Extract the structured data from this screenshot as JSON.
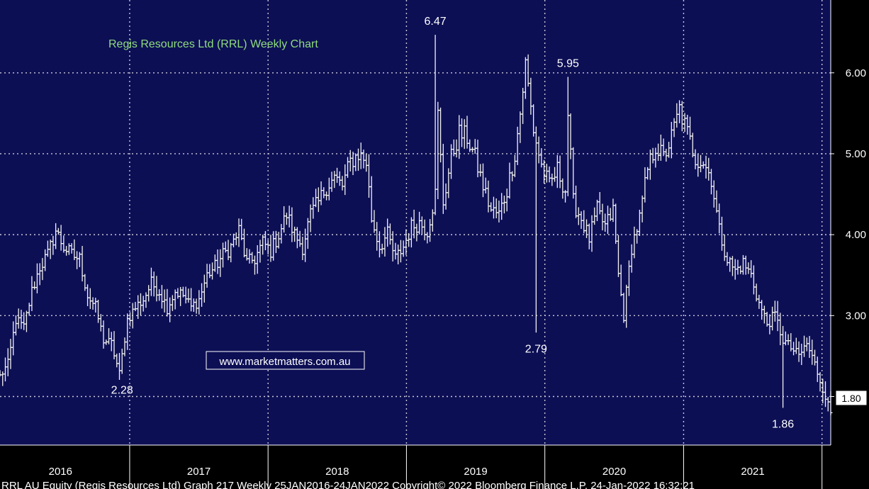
{
  "colors": {
    "plot_bg": "#0d0f55",
    "axis_bg": "#000000",
    "grid": "#c9c9d6",
    "bars": "#f2f2f2",
    "title": "#8fdc7c",
    "text": "#ffffff"
  },
  "chart_data": {
    "type": "ohlc",
    "title": "Regis Resources Ltd (RRL) Weekly Chart",
    "watermark": "www.marketmatters.com.au",
    "footer": "RRL AU Equity (Regis Resources Ltd) Graph 217  Weekly 25JAN2016-24JAN2022  Copyright© 2022 Bloomberg Finance L.P.  24-Jan-2022 16:32:21",
    "ylim": [
      1.4,
      6.9
    ],
    "xlim": [
      "2016-01-25",
      "2022-01-24"
    ],
    "y_ticks": [
      "2.00",
      "3.00",
      "4.00",
      "5.00",
      "6.00"
    ],
    "year_labels": [
      "2016",
      "2017",
      "2018",
      "2019",
      "2020",
      "2021"
    ],
    "last_price": "1.80",
    "grid": true,
    "annotations": [
      {
        "text": "6.47",
        "date": "2019-03-18",
        "value": 6.47
      },
      {
        "text": "5.95",
        "date": "2020-03-02",
        "value": 5.95
      },
      {
        "text": "2.79",
        "date": "2019-12-09",
        "value": 2.79
      },
      {
        "text": "2.28",
        "date": "2016-12-12",
        "value": 2.28
      },
      {
        "text": "1.86",
        "date": "2021-09-20",
        "value": 1.86
      }
    ],
    "price_path": [
      [
        "2016-01-25",
        2.25
      ],
      [
        "2016-02-15",
        2.4
      ],
      [
        "2016-03-07",
        2.95
      ],
      [
        "2016-03-28",
        2.85
      ],
      [
        "2016-04-18",
        3.3
      ],
      [
        "2016-05-09",
        3.6
      ],
      [
        "2016-05-30",
        3.75
      ],
      [
        "2016-06-20",
        4.05
      ],
      [
        "2016-07-11",
        3.85
      ],
      [
        "2016-08-01",
        3.75
      ],
      [
        "2016-08-22",
        3.7
      ],
      [
        "2016-09-12",
        3.25
      ],
      [
        "2016-10-03",
        3.1
      ],
      [
        "2016-10-24",
        2.7
      ],
      [
        "2016-11-14",
        2.65
      ],
      [
        "2016-12-05",
        2.28
      ],
      [
        "2016-12-26",
        2.95
      ],
      [
        "2017-01-16",
        3.1
      ],
      [
        "2017-02-06",
        3.2
      ],
      [
        "2017-02-27",
        3.4
      ],
      [
        "2017-03-20",
        3.3
      ],
      [
        "2017-04-10",
        3.1
      ],
      [
        "2017-05-01",
        3.3
      ],
      [
        "2017-05-22",
        3.25
      ],
      [
        "2017-06-12",
        3.1
      ],
      [
        "2017-07-03",
        3.2
      ],
      [
        "2017-07-24",
        3.5
      ],
      [
        "2017-08-14",
        3.6
      ],
      [
        "2017-09-04",
        3.75
      ],
      [
        "2017-09-25",
        3.85
      ],
      [
        "2017-10-16",
        4.05
      ],
      [
        "2017-11-06",
        3.65
      ],
      [
        "2017-11-27",
        3.7
      ],
      [
        "2017-12-18",
        3.9
      ],
      [
        "2018-01-08",
        3.8
      ],
      [
        "2018-01-29",
        4.0
      ],
      [
        "2018-02-19",
        4.25
      ],
      [
        "2018-03-12",
        4.0
      ],
      [
        "2018-04-02",
        3.85
      ],
      [
        "2018-04-23",
        4.25
      ],
      [
        "2018-05-14",
        4.4
      ],
      [
        "2018-06-04",
        4.6
      ],
      [
        "2018-06-25",
        4.7
      ],
      [
        "2018-07-16",
        4.6
      ],
      [
        "2018-08-06",
        4.9
      ],
      [
        "2018-08-27",
        5.0
      ],
      [
        "2018-09-17",
        4.9
      ],
      [
        "2018-10-01",
        4.2
      ],
      [
        "2018-10-22",
        3.85
      ],
      [
        "2018-11-12",
        4.0
      ],
      [
        "2018-12-03",
        3.7
      ],
      [
        "2018-12-24",
        3.85
      ],
      [
        "2019-01-14",
        4.1
      ],
      [
        "2019-02-04",
        4.15
      ],
      [
        "2019-02-25",
        4.05
      ],
      [
        "2019-03-18",
        4.5
      ],
      [
        "2019-04-08",
        4.4
      ],
      [
        "2019-04-29",
        4.95
      ],
      [
        "2019-05-20",
        5.25
      ],
      [
        "2019-06-10",
        5.2
      ],
      [
        "2019-07-01",
        4.95
      ],
      [
        "2019-07-22",
        4.6
      ],
      [
        "2019-08-12",
        4.3
      ],
      [
        "2019-09-02",
        4.25
      ],
      [
        "2019-09-23",
        4.55
      ],
      [
        "2019-10-14",
        5.0
      ],
      [
        "2019-10-28",
        5.5
      ],
      [
        "2019-11-11",
        6.1
      ],
      [
        "2019-12-02",
        5.3
      ],
      [
        "2019-12-23",
        4.85
      ],
      [
        "2020-01-13",
        4.6
      ],
      [
        "2020-02-03",
        4.8
      ],
      [
        "2020-02-24",
        4.55
      ],
      [
        "2020-03-16",
        4.4
      ],
      [
        "2020-04-06",
        4.2
      ],
      [
        "2020-04-27",
        3.95
      ],
      [
        "2020-05-18",
        4.3
      ],
      [
        "2020-06-08",
        4.1
      ],
      [
        "2020-06-29",
        4.3
      ],
      [
        "2020-07-13",
        3.5
      ],
      [
        "2020-07-27",
        3.0
      ],
      [
        "2020-08-17",
        3.85
      ],
      [
        "2020-09-07",
        4.2
      ],
      [
        "2020-09-28",
        4.8
      ],
      [
        "2020-10-19",
        5.1
      ],
      [
        "2020-11-09",
        4.95
      ],
      [
        "2020-11-30",
        5.2
      ],
      [
        "2020-12-21",
        5.55
      ],
      [
        "2021-01-11",
        5.25
      ],
      [
        "2021-02-01",
        4.95
      ],
      [
        "2021-02-22",
        4.9
      ],
      [
        "2021-03-15",
        4.7
      ],
      [
        "2021-04-05",
        4.05
      ],
      [
        "2021-04-26",
        3.7
      ],
      [
        "2021-05-17",
        3.55
      ],
      [
        "2021-06-07",
        3.65
      ],
      [
        "2021-06-28",
        3.5
      ],
      [
        "2021-07-19",
        3.15
      ],
      [
        "2021-08-09",
        2.9
      ],
      [
        "2021-08-30",
        3.0
      ],
      [
        "2021-09-20",
        2.7
      ],
      [
        "2021-10-11",
        2.6
      ],
      [
        "2021-11-01",
        2.5
      ],
      [
        "2021-11-22",
        2.65
      ],
      [
        "2021-12-13",
        2.4
      ],
      [
        "2022-01-03",
        2.1
      ],
      [
        "2022-01-24",
        1.8
      ]
    ]
  }
}
